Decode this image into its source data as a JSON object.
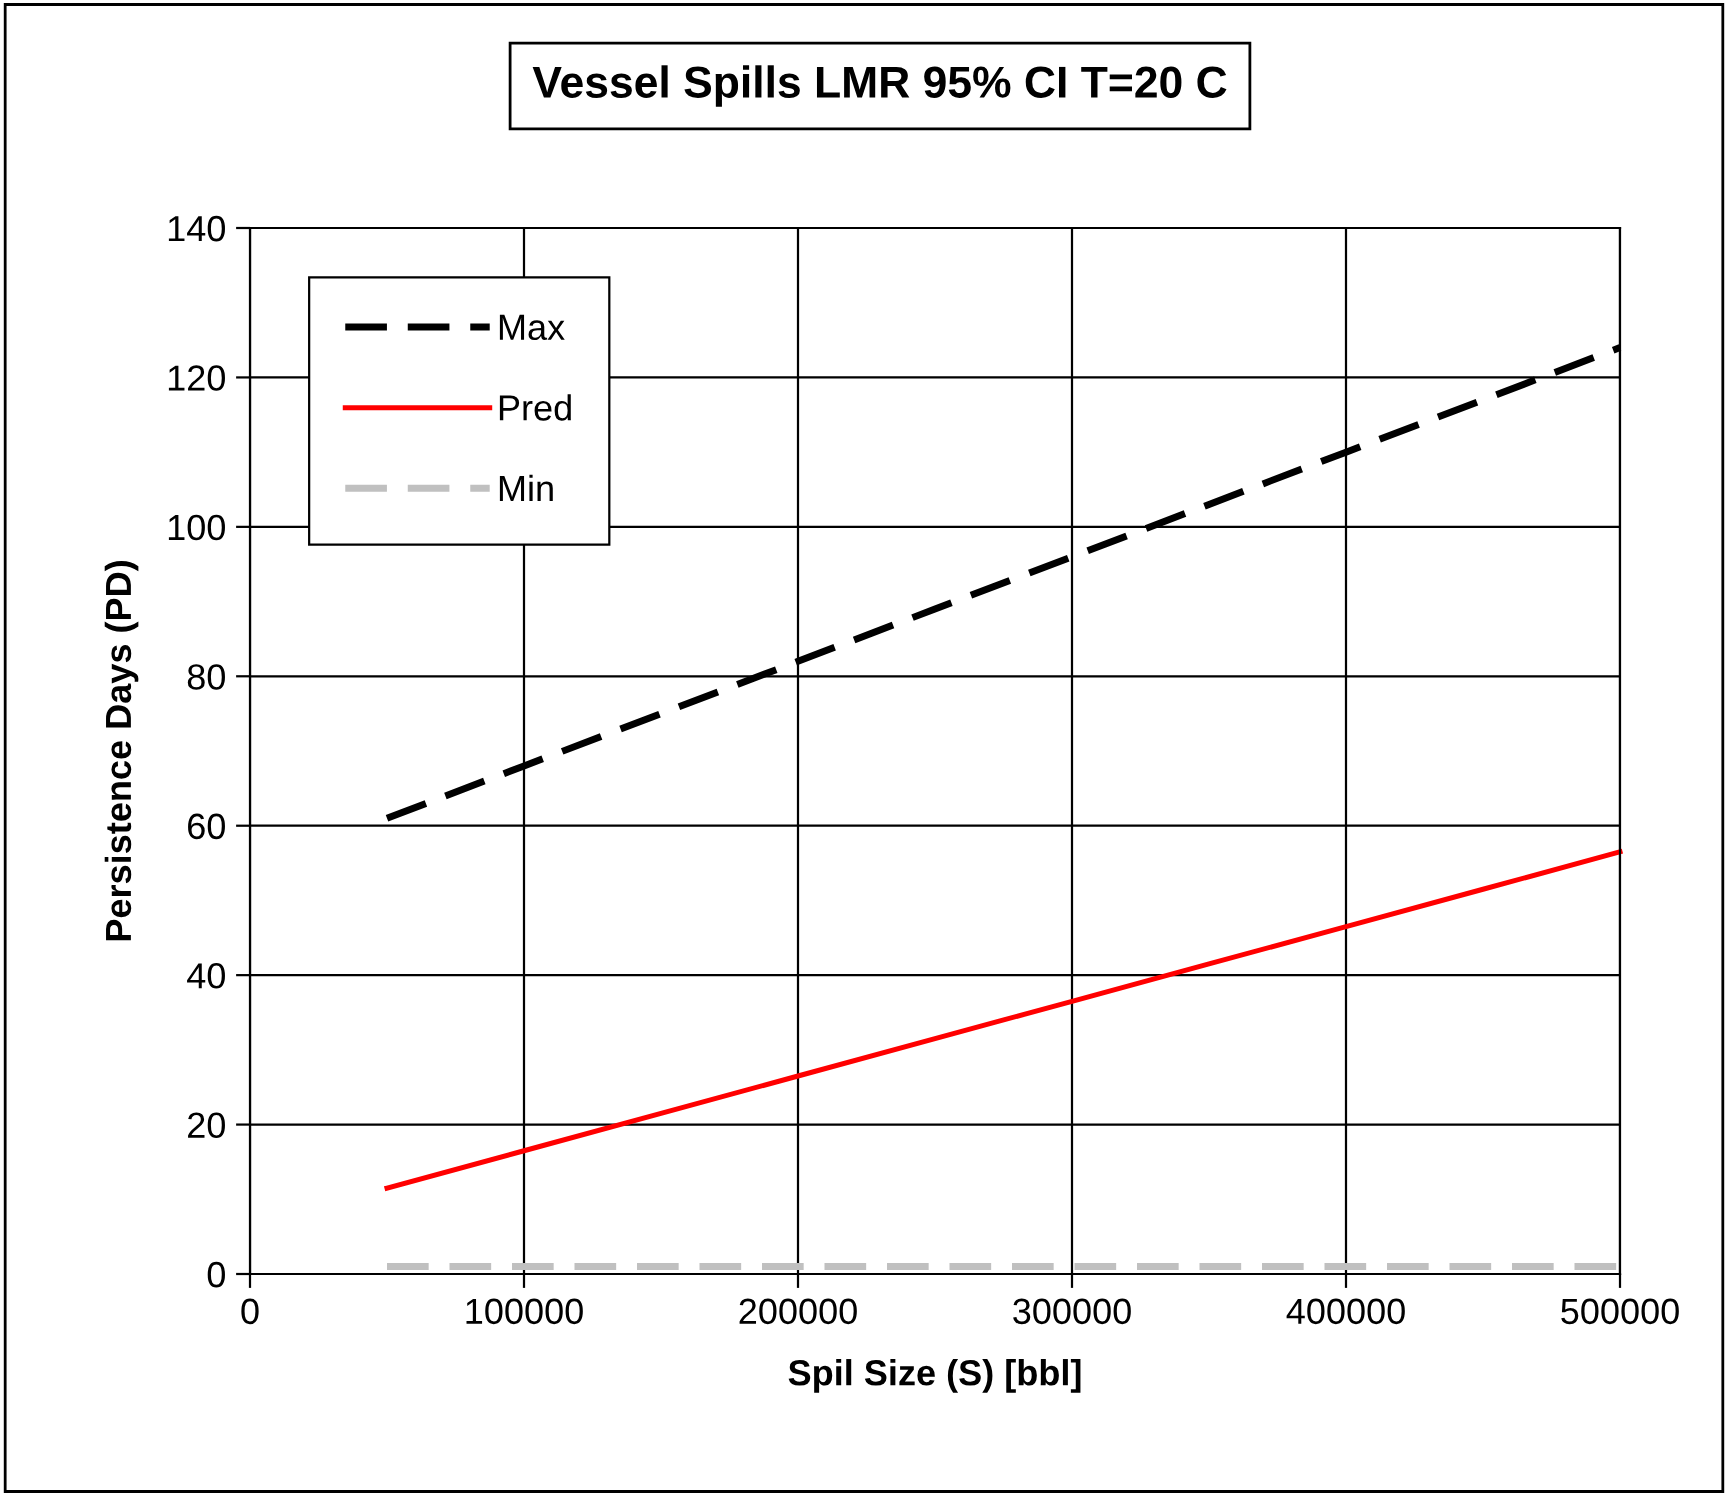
{
  "chart_data": {
    "type": "line",
    "title": "Vessel Spills LMR 95% CI T=20 C",
    "xlabel": "Spil Size (S) [bbl]",
    "ylabel": "Persistence Days (PD)",
    "x": [
      50000,
      100000,
      150000,
      200000,
      250000,
      300000,
      350000,
      400000,
      450000,
      500000
    ],
    "series": [
      {
        "name": "Max",
        "color": "#000000",
        "line_style": "dashed",
        "values": [
          61,
          68,
          75,
          82,
          89,
          96,
          103,
          110,
          117,
          124
        ]
      },
      {
        "name": "Pred",
        "color": "#ff0000",
        "line_style": "solid",
        "values": [
          11.5,
          16.5,
          21.5,
          26.5,
          31.5,
          36.5,
          41.5,
          46.5,
          51.5,
          56.5
        ]
      },
      {
        "name": "Min",
        "color": "#c0c0c0",
        "line_style": "dashed",
        "values": [
          1,
          1,
          1,
          1,
          1,
          1,
          1,
          1,
          1,
          1
        ]
      }
    ],
    "xlim": [
      0,
      500000
    ],
    "xticks": [
      0,
      100000,
      200000,
      300000,
      400000,
      500000
    ],
    "ylim": [
      0,
      140
    ],
    "yticks": [
      0,
      20,
      40,
      60,
      80,
      100,
      120,
      140
    ],
    "grid": true,
    "legend": "top left",
    "marker": "none"
  }
}
